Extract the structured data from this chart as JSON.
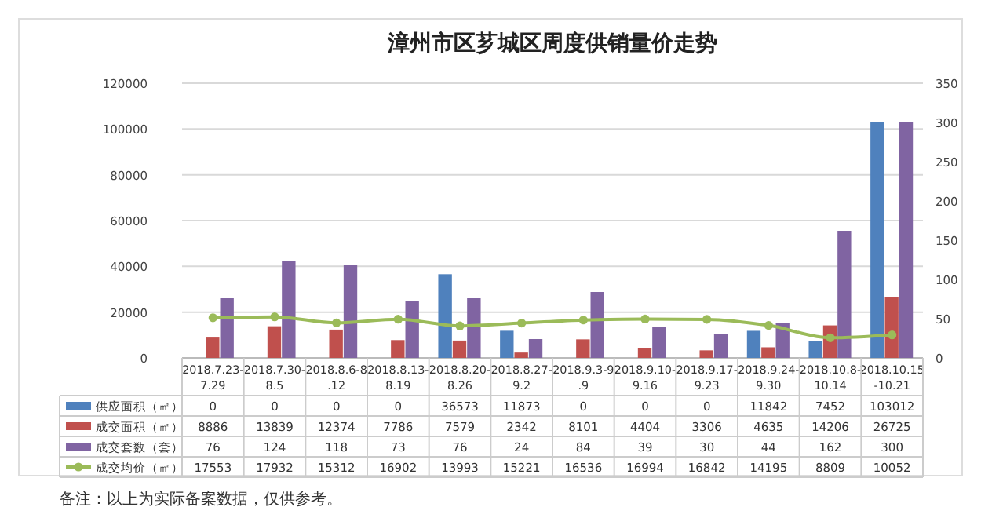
{
  "chart_data": {
    "type": "bar",
    "title": "漳州市区芗城区周度供销量价走势",
    "categories": [
      "2018.7.23-7.29",
      "2018.7.30-8.5",
      "2018.8.6-8.12",
      "2018.8.13-8.19",
      "2018.8.20-8.26",
      "2018.8.27-9.2",
      "2018.9.3-9.9",
      "2018.9.10-9.16",
      "2018.9.17-9.23",
      "2018.9.24-9.30",
      "2018.10.8-10.14",
      "2018.10.15-10.21"
    ],
    "series": [
      {
        "name": "供应面积（㎡）",
        "color": "#4f81bd",
        "values": [
          0,
          0,
          0,
          0,
          36573,
          11873,
          0,
          0,
          0,
          11842,
          7452,
          103012
        ]
      },
      {
        "name": "成交面积（㎡）",
        "color": "#c0504d",
        "values": [
          8886,
          13839,
          12374,
          7786,
          7579,
          2342,
          8101,
          4404,
          3306,
          4635,
          14206,
          26725
        ]
      },
      {
        "name": "成交套数（套）",
        "color": "#8064a2",
        "axis": "y2",
        "values": [
          76,
          124,
          118,
          73,
          76,
          24,
          84,
          39,
          30,
          44,
          162,
          300
        ]
      },
      {
        "name": "成交均价（㎡）",
        "color": "#9bbb59",
        "type": "line",
        "marker": "circle",
        "values": [
          17553,
          17932,
          15312,
          16902,
          13993,
          15221,
          16536,
          16994,
          16842,
          14195,
          8809,
          10052
        ]
      }
    ],
    "ylim": [
      0,
      120000
    ],
    "yticks": [
      0,
      20000,
      40000,
      60000,
      80000,
      100000,
      120000
    ],
    "y2lim": [
      0,
      350
    ],
    "y2ticks": [
      0,
      50,
      100,
      150,
      200,
      250,
      300,
      350
    ],
    "grid": "y",
    "legend": "bottom",
    "data_labels": true,
    "annotations": [
      "备注：以上为实际备案数据，仅供参考。"
    ]
  }
}
